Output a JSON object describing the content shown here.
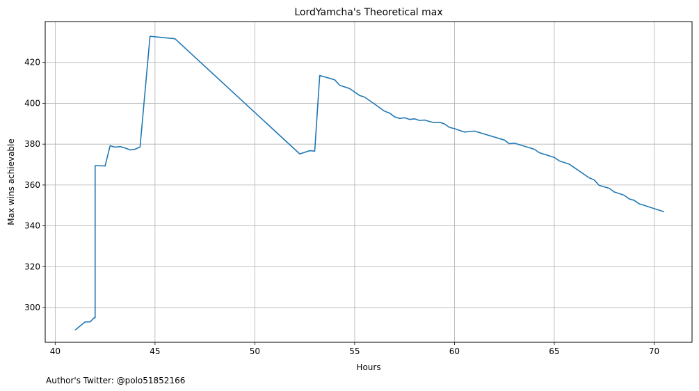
{
  "chart_data": {
    "type": "line",
    "title": "LordYamcha's Theoretical max",
    "xlabel": "Hours",
    "ylabel": "Max wins achievable",
    "xlim": [
      39.5,
      71.9
    ],
    "ylim": [
      283,
      440
    ],
    "xticks": [
      40,
      45,
      50,
      55,
      60,
      65,
      70
    ],
    "yticks": [
      300,
      320,
      340,
      360,
      380,
      400,
      420
    ],
    "grid": true,
    "colors": {
      "line": "#1f77b4",
      "grid": "#b0b0b0"
    },
    "series": [
      {
        "x": [
          41.0,
          41.5,
          41.75,
          41.95,
          42.0,
          42.0,
          42.5,
          42.75,
          43.0,
          43.25,
          43.5,
          43.75,
          44.0,
          44.25,
          44.75,
          46.0,
          52.25,
          52.75,
          53.0,
          53.25,
          54.0,
          54.25,
          54.75,
          55.25,
          55.5,
          56.0,
          56.5,
          56.75,
          57.0,
          57.25,
          57.5,
          57.75,
          58.0,
          58.25,
          58.5,
          58.75,
          59.0,
          59.25,
          59.5,
          59.75,
          60.0,
          60.5,
          61.0,
          62.5,
          62.75,
          63.0,
          64.0,
          64.25,
          65.0,
          65.25,
          65.75,
          66.75,
          67.0,
          67.25,
          67.75,
          68.0,
          68.5,
          68.75,
          69.0,
          69.25,
          70.5
        ],
        "y": [
          289,
          293,
          293,
          295,
          295,
          369.5,
          369.3,
          379.2,
          378.5,
          378.8,
          378.1,
          377.2,
          377.5,
          378.6,
          432.8,
          431.6,
          375.2,
          376.8,
          376.6,
          413.6,
          411.5,
          408.8,
          407.2,
          403.8,
          403.0,
          399.6,
          396.1,
          395.2,
          393.4,
          392.6,
          392.9,
          392.1,
          392.4,
          391.6,
          391.8,
          391.1,
          390.5,
          390.7,
          389.9,
          388.2,
          387.6,
          385.9,
          386.4,
          382.0,
          380.2,
          380.5,
          377.5,
          375.8,
          373.5,
          371.8,
          370.2,
          363.5,
          362.5,
          359.8,
          358.4,
          356.6,
          355.0,
          353.2,
          352.5,
          350.8,
          346.9
        ]
      }
    ]
  },
  "footer": {
    "note": "Author's Twitter: @polo51852166"
  }
}
